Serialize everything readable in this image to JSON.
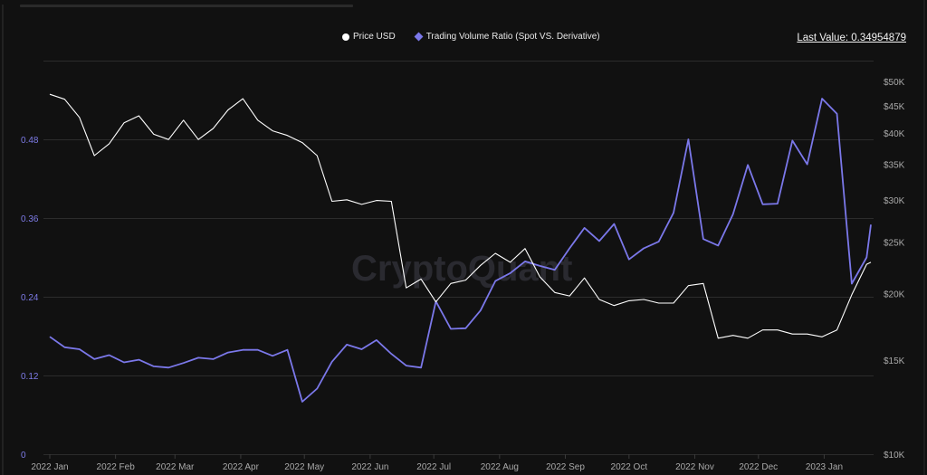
{
  "legend": {
    "price_label": "Price USD",
    "ratio_label": "Trading Volume Ratio (Spot VS. Derivative)",
    "price_color": "#ffffff",
    "ratio_color": "#7b78ea"
  },
  "last_value": "Last Value: 0.34954879",
  "watermark": "CryptoQuant",
  "colors": {
    "background": "#111111",
    "grid": "#2c2c2c",
    "left_axis_text": "#7d7be6",
    "right_axis_text": "#a9a9a9"
  },
  "chart_data": {
    "type": "line",
    "title": "",
    "xlabel": "",
    "ylabel_left": "Trading Volume Ratio (Spot VS. Derivative)",
    "ylabel_right": "Price USD",
    "x_ticks": [
      "2022 Jan",
      "2022 Feb",
      "2022 Mar",
      "2022 Apr",
      "2022 May",
      "2022 Jun",
      "2022 Jul",
      "2022 Aug",
      "2022 Sep",
      "2022 Oct",
      "2022 Nov",
      "2022 Dec",
      "2023 Jan"
    ],
    "y_left_ticks": [
      "0",
      "0.12",
      "0.24",
      "0.36",
      "0.48"
    ],
    "y_left_range": [
      0,
      0.6
    ],
    "y_right_ticks": [
      "$10K",
      "$15K",
      "$20K",
      "$25K",
      "$30K",
      "$35K",
      "$40K",
      "$45K",
      "$50K"
    ],
    "y_right_scale": "log",
    "y_right_range": [
      10000,
      50000
    ],
    "grid": true,
    "legend_position": "top-center",
    "last_value": 0.34954879,
    "x": [
      "2022-01-01",
      "2022-01-08",
      "2022-01-15",
      "2022-01-22",
      "2022-01-29",
      "2022-02-05",
      "2022-02-12",
      "2022-02-19",
      "2022-02-26",
      "2022-03-05",
      "2022-03-12",
      "2022-03-19",
      "2022-03-26",
      "2022-04-02",
      "2022-04-09",
      "2022-04-16",
      "2022-04-23",
      "2022-04-30",
      "2022-05-07",
      "2022-05-14",
      "2022-05-21",
      "2022-05-28",
      "2022-06-04",
      "2022-06-11",
      "2022-06-18",
      "2022-06-25",
      "2022-07-02",
      "2022-07-09",
      "2022-07-16",
      "2022-07-23",
      "2022-07-30",
      "2022-08-06",
      "2022-08-13",
      "2022-08-20",
      "2022-08-27",
      "2022-09-03",
      "2022-09-10",
      "2022-09-17",
      "2022-09-24",
      "2022-10-01",
      "2022-10-08",
      "2022-10-15",
      "2022-10-22",
      "2022-10-29",
      "2022-11-05",
      "2022-11-12",
      "2022-11-19",
      "2022-11-26",
      "2022-12-03",
      "2022-12-10",
      "2022-12-17",
      "2022-12-24",
      "2022-12-31",
      "2023-01-07",
      "2023-01-14",
      "2023-01-21",
      "2023-01-23"
    ],
    "series": [
      {
        "name": "Price USD",
        "axis": "right",
        "color": "#ffffff",
        "values": [
          47300,
          46300,
          42800,
          36300,
          38200,
          41800,
          43100,
          39800,
          38900,
          42300,
          38900,
          40800,
          44200,
          46400,
          42300,
          40400,
          39600,
          38400,
          36300,
          29800,
          30000,
          29400,
          29900,
          29800,
          20500,
          21300,
          19300,
          20900,
          21200,
          22600,
          23800,
          22900,
          24300,
          21500,
          20100,
          19800,
          21400,
          19500,
          19000,
          19400,
          19500,
          19200,
          19200,
          20700,
          20900,
          16500,
          16700,
          16500,
          17100,
          17100,
          16800,
          16800,
          16600,
          17100,
          19900,
          22700,
          22900
        ]
      },
      {
        "name": "Trading Volume Ratio (Spot VS. Derivative)",
        "axis": "left",
        "color": "#7b78ea",
        "values": [
          0.179,
          0.163,
          0.16,
          0.145,
          0.151,
          0.14,
          0.144,
          0.134,
          0.132,
          0.139,
          0.147,
          0.145,
          0.155,
          0.159,
          0.159,
          0.15,
          0.159,
          0.08,
          0.1,
          0.141,
          0.167,
          0.16,
          0.174,
          0.153,
          0.135,
          0.132,
          0.233,
          0.191,
          0.192,
          0.219,
          0.264,
          0.276,
          0.294,
          0.287,
          0.281,
          0.314,
          0.345,
          0.325,
          0.351,
          0.297,
          0.314,
          0.324,
          0.368,
          0.48,
          0.328,
          0.318,
          0.366,
          0.441,
          0.381,
          0.382,
          0.478,
          0.442,
          0.542,
          0.519,
          0.26,
          0.3,
          0.35
        ]
      }
    ]
  }
}
